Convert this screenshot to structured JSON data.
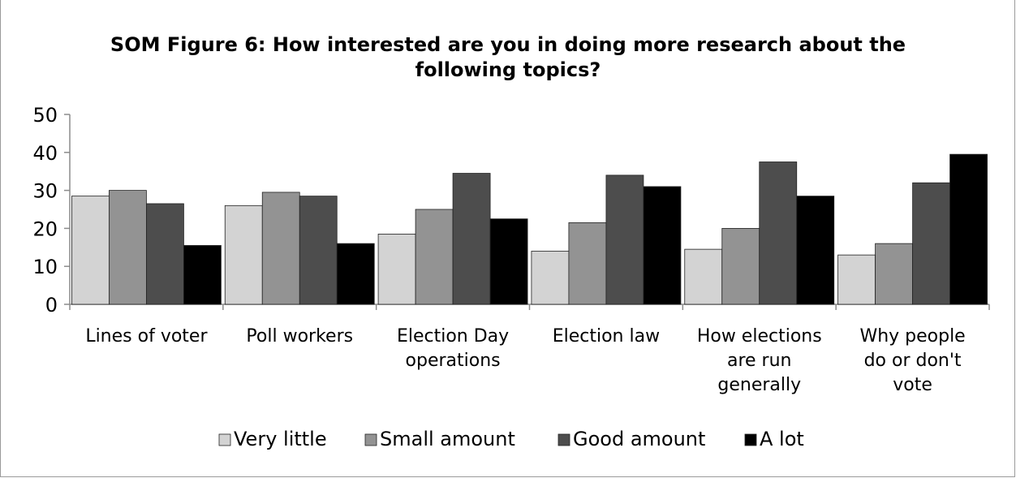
{
  "chart_data": {
    "type": "bar",
    "title": "SOM Figure 6: How interested are you in doing more research about the following topics?",
    "title_lines": [
      "SOM Figure 6: How interested are you in doing more research about the",
      "following topics?"
    ],
    "categories": [
      "Lines of voter",
      "Poll workers",
      "Election Day operations",
      "Election law",
      "How elections are run generally",
      "Why people do or don't vote"
    ],
    "category_lines": [
      [
        "Lines of voter"
      ],
      [
        "Poll workers"
      ],
      [
        "Election Day",
        "operations"
      ],
      [
        "Election law"
      ],
      [
        "How elections",
        "are run",
        "generally"
      ],
      [
        "Why people",
        "do or don't",
        "vote"
      ]
    ],
    "series": [
      {
        "name": "Very little",
        "color": "#d3d3d3",
        "values": [
          28.5,
          26,
          18.5,
          14,
          14.5,
          13
        ]
      },
      {
        "name": "Small amount",
        "color": "#939393",
        "values": [
          30,
          29.5,
          25,
          21.5,
          20,
          16
        ]
      },
      {
        "name": "Good amount",
        "color": "#4d4d4d",
        "values": [
          26.5,
          28.5,
          34.5,
          34,
          37.5,
          32
        ]
      },
      {
        "name": "A lot",
        "color": "#000000",
        "values": [
          15.5,
          16,
          22.5,
          31,
          28.5,
          39.5
        ]
      }
    ],
    "ylim": [
      0,
      50
    ],
    "yticks": [
      0,
      10,
      20,
      30,
      40,
      50
    ],
    "xlabel": "",
    "ylabel": "",
    "grid": false,
    "legend_position": "bottom"
  }
}
